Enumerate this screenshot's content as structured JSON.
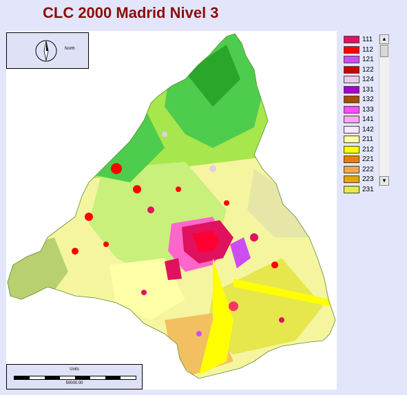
{
  "title": "CLC 2000 Madrid Nivel 3",
  "north_label": "North",
  "scale": {
    "units_label": "Units",
    "distance_label": "50000.00"
  },
  "legend": {
    "items": [
      {
        "code": "111",
        "color": "#e0115f"
      },
      {
        "code": "112",
        "color": "#ff0000"
      },
      {
        "code": "121",
        "color": "#cc4df2"
      },
      {
        "code": "122",
        "color": "#cc0000"
      },
      {
        "code": "124",
        "color": "#e6cce6"
      },
      {
        "code": "131",
        "color": "#a600cc"
      },
      {
        "code": "132",
        "color": "#a64d00"
      },
      {
        "code": "133",
        "color": "#ff4dff"
      },
      {
        "code": "141",
        "color": "#ffa6ff"
      },
      {
        "code": "142",
        "color": "#ffe6ff"
      },
      {
        "code": "211",
        "color": "#ffffa8"
      },
      {
        "code": "212",
        "color": "#ffff00"
      },
      {
        "code": "221",
        "color": "#e68000"
      },
      {
        "code": "222",
        "color": "#f2a64d"
      },
      {
        "code": "223",
        "color": "#e6a600"
      },
      {
        "code": "231",
        "color": "#e6e64d"
      }
    ]
  },
  "scrollbar": {
    "up_icon": "▲",
    "down_icon": "▼"
  }
}
